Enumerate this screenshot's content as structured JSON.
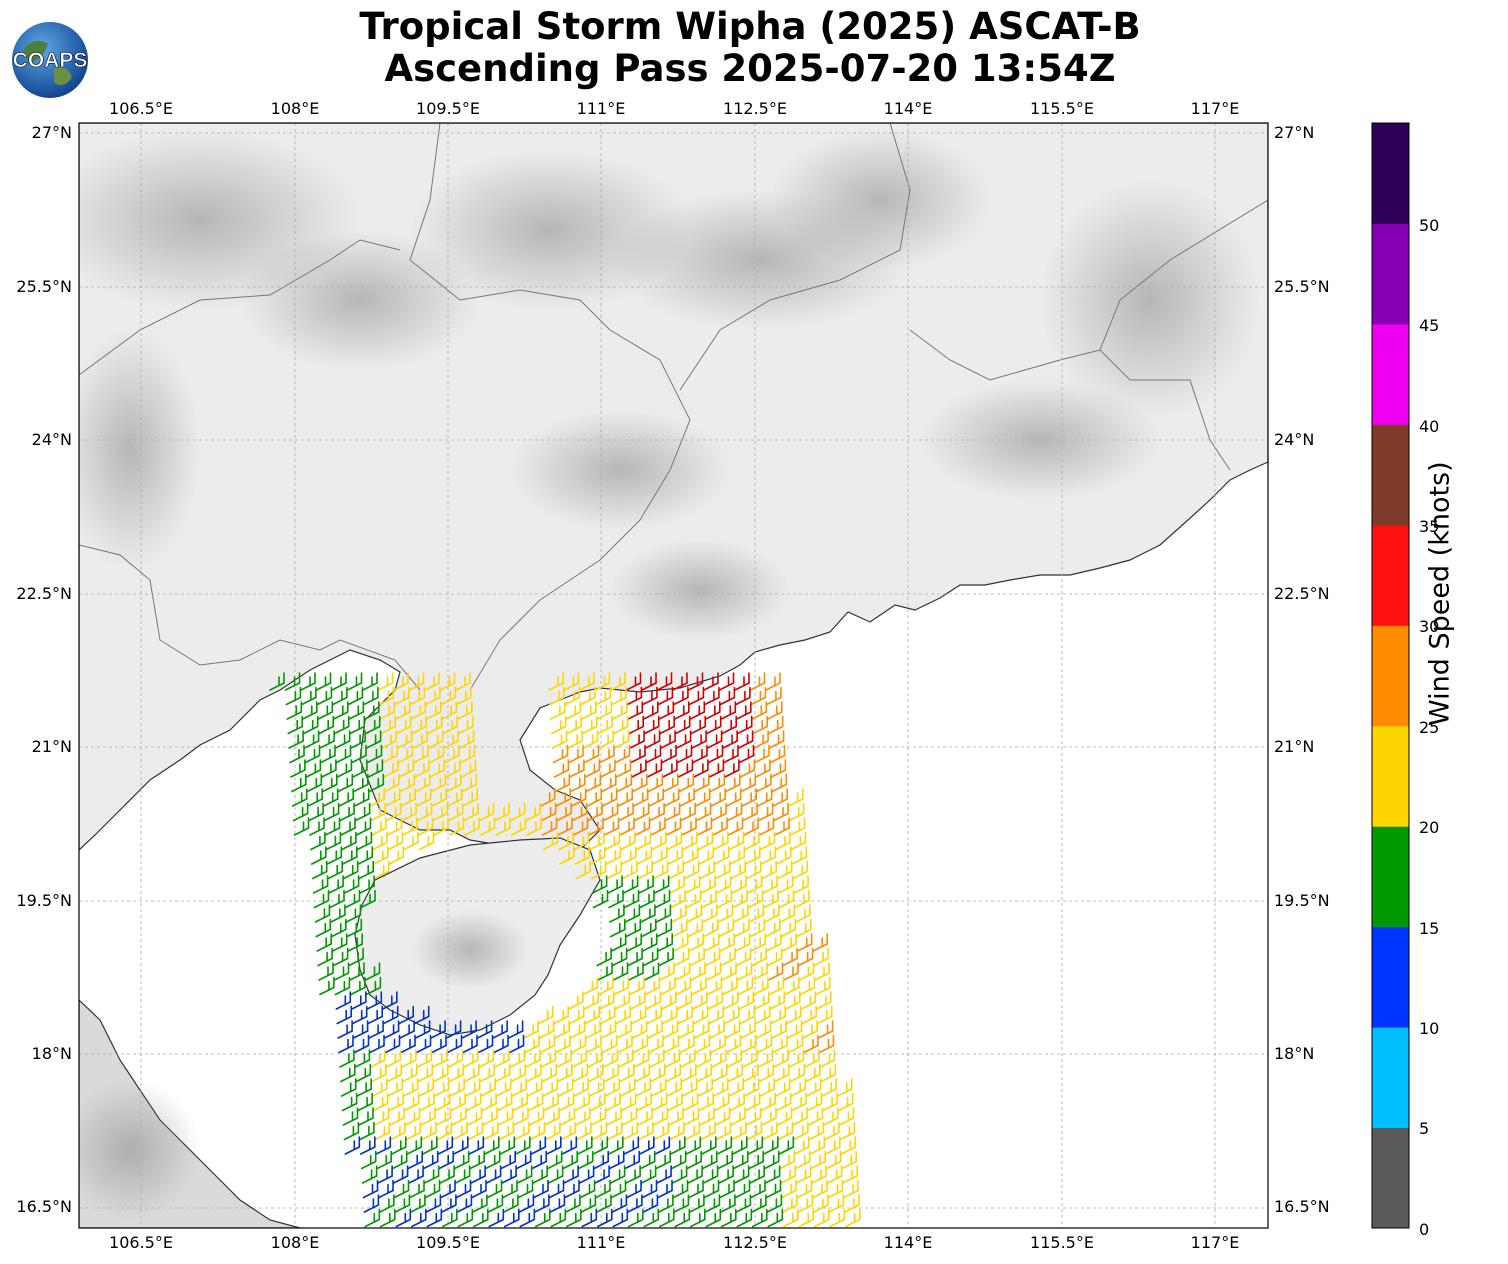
{
  "title": {
    "line1": "Tropical Storm Wipha (2025) ASCAT-B",
    "line2": "Ascending Pass 2025-07-20 13:54Z"
  },
  "logo": {
    "text": "COAPS",
    "icon": "globe-logo"
  },
  "map": {
    "lon_range": [
      105.5,
      117.5
    ],
    "lat_range": [
      16.3,
      27.1
    ],
    "lon_ticks": [
      "106.5°E",
      "108°E",
      "109.5°E",
      "111°E",
      "112.5°E",
      "114°E",
      "115.5°E",
      "117°E"
    ],
    "lat_ticks": [
      "27°N",
      "25.5°N",
      "24°N",
      "22.5°N",
      "21°N",
      "19.5°N",
      "18°N",
      "16.5°N"
    ],
    "grid": true,
    "background": "grayscale topography"
  },
  "colorbar": {
    "label": "Wind Speed (knots)",
    "tick_labels": [
      "0",
      "5",
      "10",
      "15",
      "20",
      "25",
      "30",
      "35",
      "40",
      "45",
      "50"
    ],
    "colors": [
      "#595959",
      "#00bfff",
      "#0033ff",
      "#009900",
      "#ffd500",
      "#ff8c00",
      "#ff1010",
      "#7f3b2a",
      "#f000f0",
      "#8800b3",
      "#2e0057"
    ]
  },
  "wind_barbs": {
    "colors_in_use": [
      "#ffd500",
      "#ff8c00",
      "#d40000",
      "#009900",
      "#0033cc",
      "#00bfff"
    ]
  }
}
